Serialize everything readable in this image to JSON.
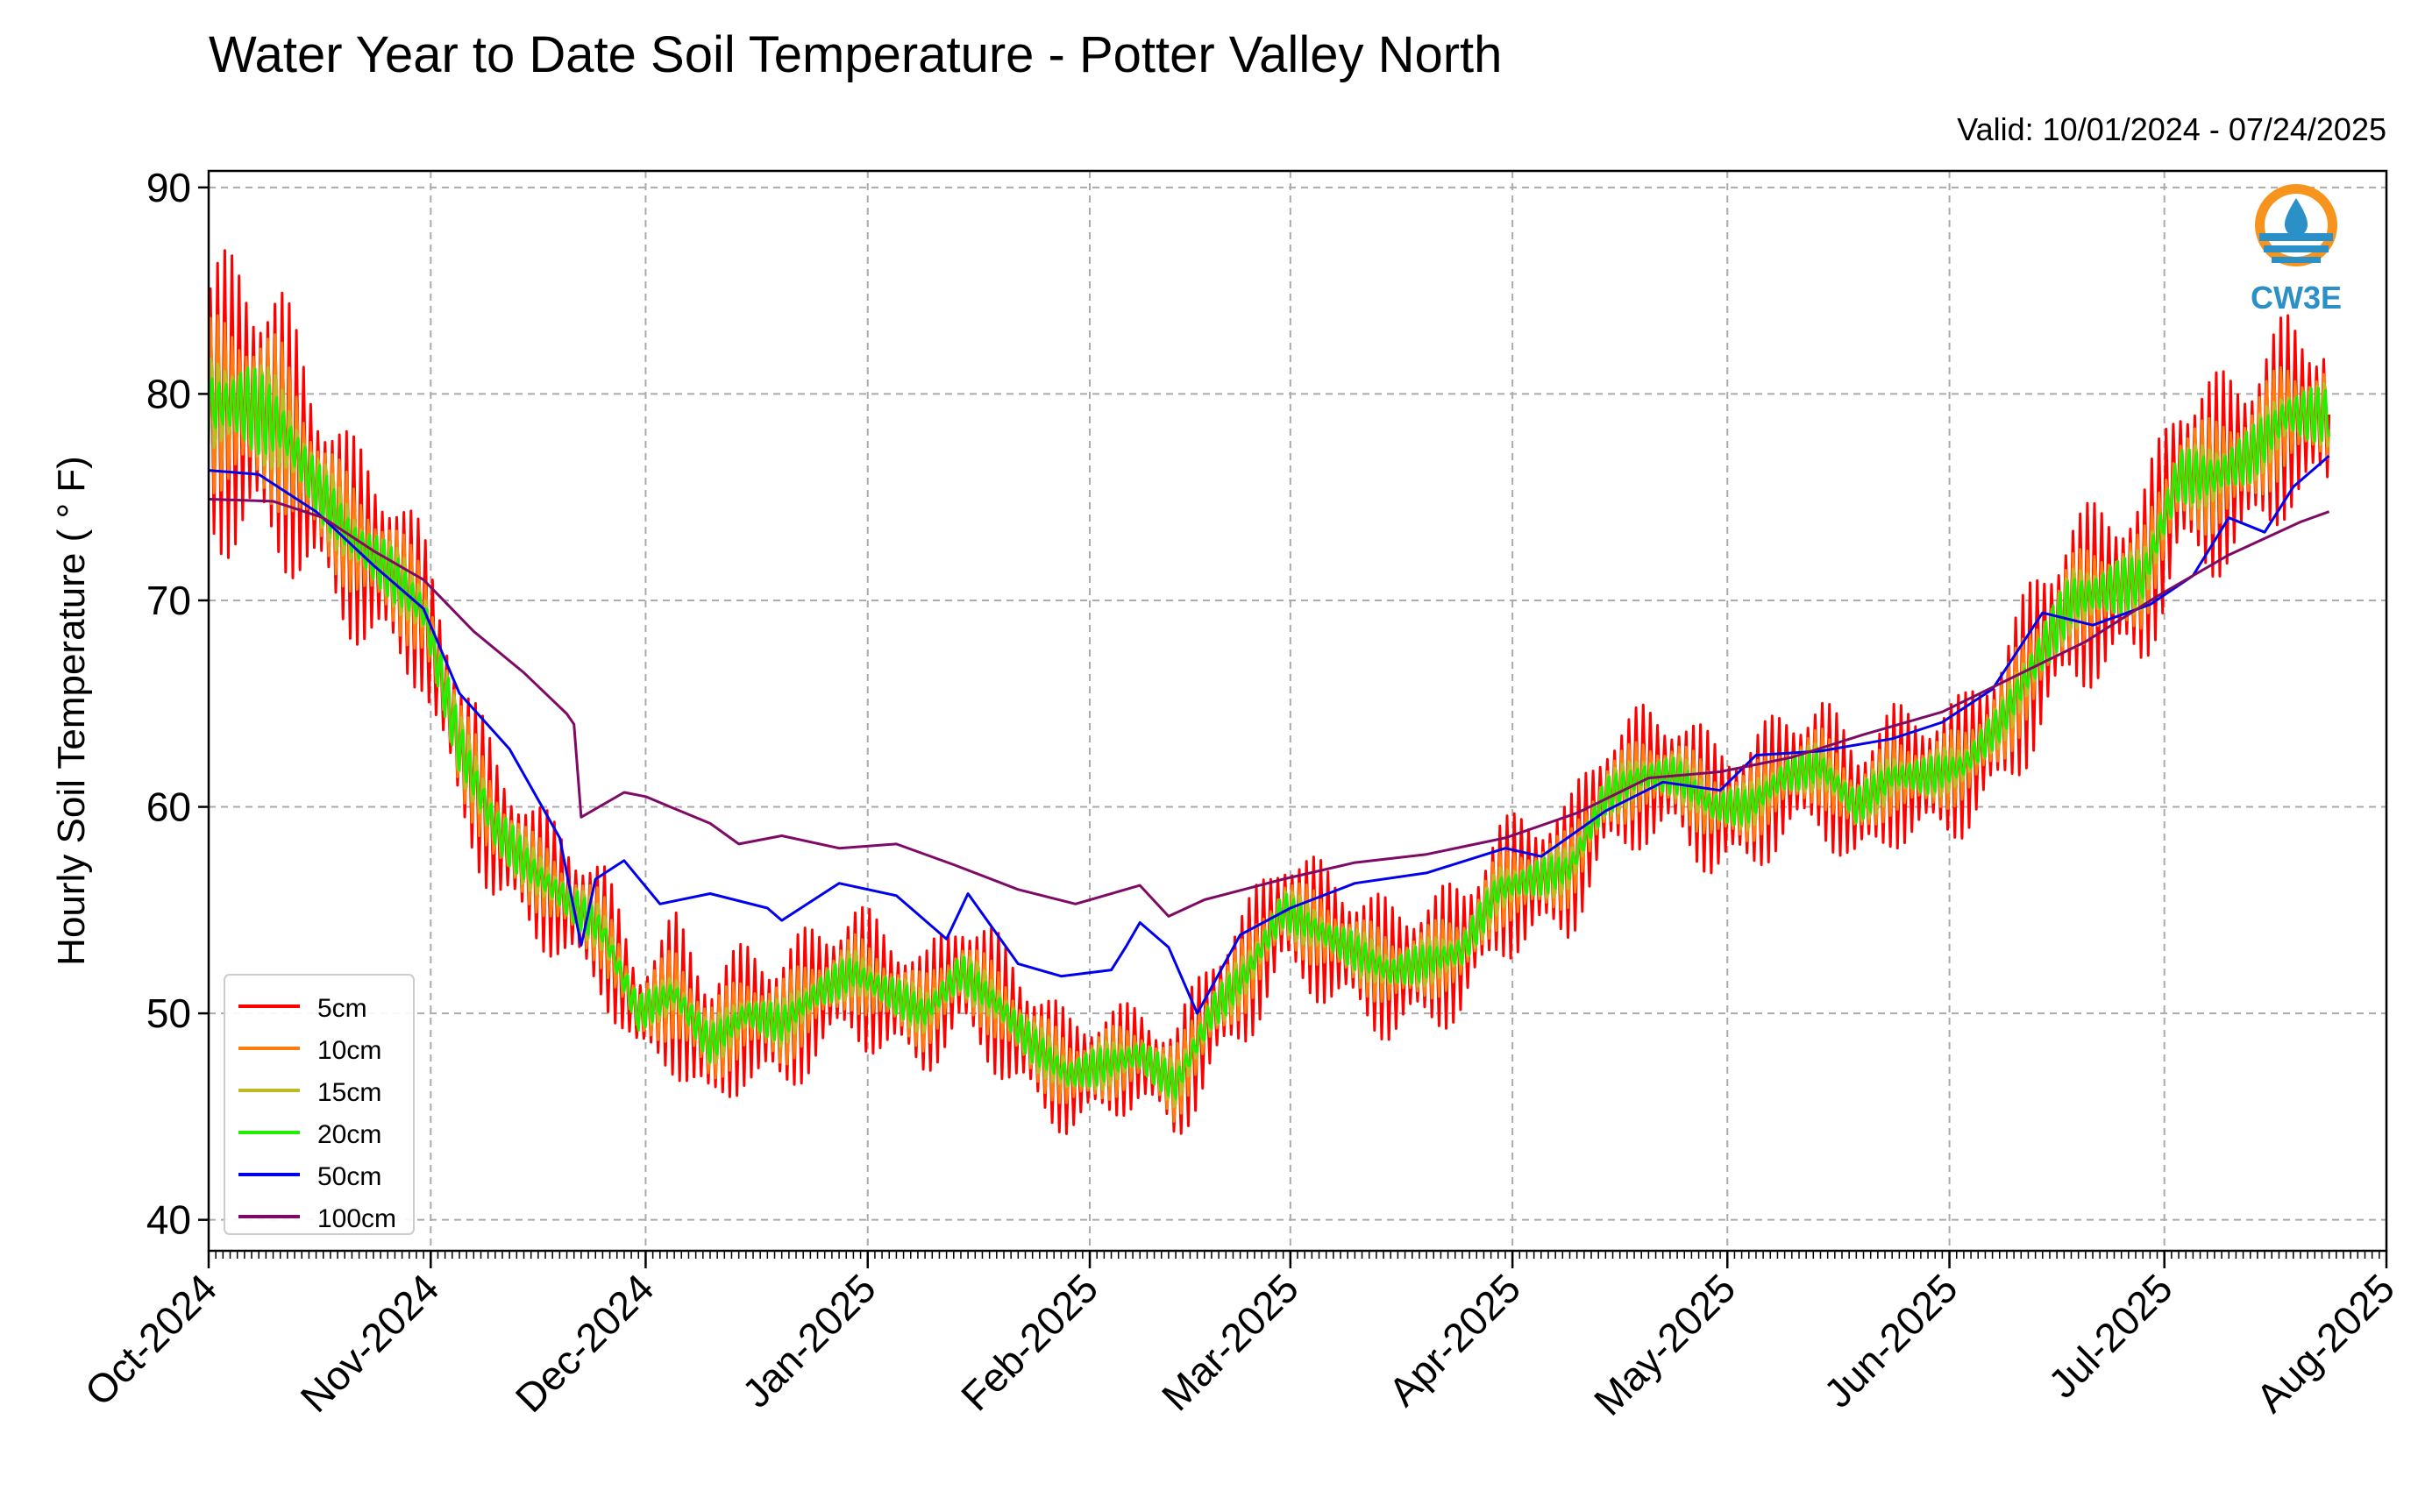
{
  "chart_data": {
    "type": "line",
    "title": "Water Year to Date Soil Temperature - Potter Valley North",
    "subtitle": "Valid: 10/01/2024 - 07/24/2025",
    "xlabel": "",
    "ylabel": "Hourly Soil Temperature ( ° F)",
    "logo_text": "CW3E",
    "xlim": [
      "2024-10-01",
      "2025-08-01"
    ],
    "ylim": [
      38.5,
      90.8
    ],
    "yticks": [
      40,
      50,
      60,
      70,
      80,
      90
    ],
    "xticks": [
      {
        "date": "2024-10-01",
        "label": "Oct-2024"
      },
      {
        "date": "2024-11-01",
        "label": "Nov-2024"
      },
      {
        "date": "2024-12-01",
        "label": "Dec-2024"
      },
      {
        "date": "2025-01-01",
        "label": "Jan-2025"
      },
      {
        "date": "2025-02-01",
        "label": "Feb-2025"
      },
      {
        "date": "2025-03-01",
        "label": "Mar-2025"
      },
      {
        "date": "2025-04-01",
        "label": "Apr-2025"
      },
      {
        "date": "2025-05-01",
        "label": "May-2025"
      },
      {
        "date": "2025-06-01",
        "label": "Jun-2025"
      },
      {
        "date": "2025-07-01",
        "label": "Jul-2025"
      },
      {
        "date": "2025-08-01",
        "label": "Aug-2025"
      }
    ],
    "grid": true,
    "legend_position": "bottom-left",
    "series": [
      {
        "name": "5cm",
        "color": "#ff0000",
        "width": 3,
        "x": [
          "2024-10-01",
          "2024-10-06",
          "2024-10-11",
          "2024-10-16",
          "2024-10-21",
          "2024-10-26",
          "2024-10-31",
          "2024-11-05",
          "2024-11-10",
          "2024-11-15",
          "2024-11-20",
          "2024-11-25",
          "2024-11-30",
          "2024-12-05",
          "2024-12-10",
          "2024-12-15",
          "2024-12-20",
          "2024-12-25",
          "2024-12-30",
          "2025-01-04",
          "2025-01-09",
          "2025-01-14",
          "2025-01-19",
          "2025-01-24",
          "2025-01-29",
          "2025-02-03",
          "2025-02-08",
          "2025-02-13",
          "2025-02-18",
          "2025-02-23",
          "2025-02-28",
          "2025-03-05",
          "2025-03-10",
          "2025-03-15",
          "2025-03-20",
          "2025-03-25",
          "2025-03-30",
          "2025-04-04",
          "2025-04-09",
          "2025-04-14",
          "2025-04-19",
          "2025-04-24",
          "2025-04-29",
          "2025-05-04",
          "2025-05-09",
          "2025-05-14",
          "2025-05-19",
          "2025-05-24",
          "2025-05-29",
          "2025-06-03",
          "2025-06-08",
          "2025-06-13",
          "2025-06-18",
          "2025-06-23",
          "2025-06-28",
          "2025-07-03",
          "2025-07-08",
          "2025-07-13",
          "2025-07-18",
          "2025-07-23"
        ],
        "mean": [
          79.5,
          79.5,
          78.5,
          75.5,
          73,
          71.5,
          69.5,
          63,
          59,
          57,
          55.5,
          54,
          50,
          51,
          48.5,
          50,
          49.5,
          51,
          52,
          51,
          50,
          52,
          50.5,
          48.5,
          47,
          47.5,
          48,
          46.5,
          50,
          52,
          55,
          54,
          53,
          52,
          52.5,
          53,
          56,
          56.5,
          57,
          60.5,
          61.5,
          61.5,
          60,
          60,
          61.5,
          62,
          60,
          61.5,
          61.5,
          62,
          64,
          67,
          70,
          70.5,
          71,
          76,
          76,
          77,
          79,
          79
        ],
        "amp": [
          7,
          8,
          7,
          5.5,
          5,
          5,
          4,
          4,
          4,
          3.5,
          3.5,
          3.5,
          2.5,
          4,
          4,
          3.5,
          4,
          3.5,
          3.5,
          3.5,
          3,
          3.5,
          3.5,
          3.5,
          3,
          3,
          2.5,
          3,
          3.5,
          3.5,
          3.5,
          3.5,
          3.5,
          3.5,
          3.5,
          3.5,
          3.5,
          3.5,
          3.5,
          3.5,
          3.5,
          3.5,
          3.5,
          3.5,
          3.5,
          3.5,
          3.5,
          3.5,
          3.5,
          3.5,
          4,
          4.5,
          4.5,
          4.5,
          4.5,
          5,
          5,
          5,
          5,
          4.5
        ]
      },
      {
        "name": "10cm",
        "color": "#ff7f0e",
        "width": 3,
        "x": [
          "2024-10-01",
          "2024-10-06",
          "2024-10-11",
          "2024-10-16",
          "2024-10-21",
          "2024-10-26",
          "2024-10-31",
          "2024-11-05",
          "2024-11-10",
          "2024-11-15",
          "2024-11-20",
          "2024-11-25",
          "2024-11-30",
          "2024-12-05",
          "2024-12-10",
          "2024-12-15",
          "2024-12-20",
          "2024-12-25",
          "2024-12-30",
          "2025-01-04",
          "2025-01-09",
          "2025-01-14",
          "2025-01-19",
          "2025-01-24",
          "2025-01-29",
          "2025-02-03",
          "2025-02-08",
          "2025-02-13",
          "2025-02-18",
          "2025-02-23",
          "2025-02-28",
          "2025-03-05",
          "2025-03-10",
          "2025-03-15",
          "2025-03-20",
          "2025-03-25",
          "2025-03-30",
          "2025-04-04",
          "2025-04-09",
          "2025-04-14",
          "2025-04-19",
          "2025-04-24",
          "2025-04-29",
          "2025-05-04",
          "2025-05-09",
          "2025-05-14",
          "2025-05-19",
          "2025-05-24",
          "2025-05-29",
          "2025-06-03",
          "2025-06-08",
          "2025-06-13",
          "2025-06-18",
          "2025-06-23",
          "2025-06-28",
          "2025-07-03",
          "2025-07-08",
          "2025-07-13",
          "2025-07-18",
          "2025-07-23"
        ],
        "mean": [
          79.5,
          79.5,
          78.5,
          75.5,
          73,
          71.5,
          69.5,
          63,
          59,
          57,
          55.5,
          54,
          50,
          51,
          48.5,
          50,
          49.5,
          51,
          52,
          51,
          50,
          52,
          50.5,
          48.5,
          47,
          47.5,
          48,
          46.5,
          50,
          52,
          55,
          54,
          53,
          52,
          52.5,
          53,
          56,
          56.5,
          57,
          60.5,
          61.5,
          61.5,
          60,
          60,
          61.5,
          62,
          60,
          61.5,
          61.5,
          62,
          64,
          67,
          70,
          70.5,
          71,
          76,
          76,
          77,
          79,
          79
        ],
        "amp": [
          4.5,
          5,
          4.5,
          3.5,
          3,
          3,
          2.5,
          2.5,
          2.5,
          2,
          2,
          2,
          1.5,
          2.5,
          2.5,
          2,
          2.5,
          2,
          2,
          2,
          2,
          2,
          2,
          2,
          2,
          2,
          1.5,
          2,
          2,
          2,
          2,
          2,
          2,
          2,
          2,
          2,
          2,
          2,
          2,
          2,
          2,
          2,
          2,
          2,
          2,
          2,
          2,
          2,
          2,
          2,
          2.5,
          2.5,
          2.5,
          2.5,
          2.5,
          3,
          3,
          3,
          3,
          2.5
        ]
      },
      {
        "name": "15cm",
        "color": "#bcbd22",
        "width": 3,
        "x": [
          "2024-10-01",
          "2024-10-06",
          "2024-10-11",
          "2024-10-16",
          "2024-10-21",
          "2024-10-26",
          "2024-10-31",
          "2024-11-05",
          "2024-11-10",
          "2024-11-15",
          "2024-11-20",
          "2024-11-25",
          "2024-11-30",
          "2024-12-05",
          "2024-12-10",
          "2024-12-15",
          "2024-12-20",
          "2024-12-25",
          "2024-12-30",
          "2025-01-04",
          "2025-01-09",
          "2025-01-14",
          "2025-01-19",
          "2025-01-24",
          "2025-01-29",
          "2025-02-03",
          "2025-02-08",
          "2025-02-13",
          "2025-02-18",
          "2025-02-23",
          "2025-02-28",
          "2025-03-05",
          "2025-03-10",
          "2025-03-15",
          "2025-03-20",
          "2025-03-25",
          "2025-03-30",
          "2025-04-04",
          "2025-04-09",
          "2025-04-14",
          "2025-04-19",
          "2025-04-24",
          "2025-04-29",
          "2025-05-04",
          "2025-05-09",
          "2025-05-14",
          "2025-05-19",
          "2025-05-24",
          "2025-05-29",
          "2025-06-03",
          "2025-06-08",
          "2025-06-13",
          "2025-06-18",
          "2025-06-23",
          "2025-06-28",
          "2025-07-03",
          "2025-07-08",
          "2025-07-13",
          "2025-07-18",
          "2025-07-23"
        ],
        "mean": [
          79.5,
          79.5,
          78.5,
          75.5,
          73,
          71.5,
          69.5,
          63,
          59,
          57,
          55.5,
          54,
          50,
          51,
          48.5,
          50,
          49.5,
          51,
          52,
          51,
          50,
          52,
          50.5,
          48.5,
          47,
          47.5,
          48,
          46.5,
          50,
          52,
          55,
          54,
          53,
          52,
          52.5,
          53,
          56,
          56.5,
          57,
          60.5,
          61.5,
          61.5,
          60,
          60,
          61.5,
          62,
          60,
          61.5,
          61.5,
          62,
          64,
          67,
          70,
          70.5,
          71,
          76,
          76,
          77,
          79,
          79
        ],
        "amp": [
          3,
          3.5,
          3,
          2.5,
          2,
          2,
          2,
          2,
          2,
          1.5,
          1.5,
          1.5,
          1,
          1.5,
          1.5,
          1.5,
          1.5,
          1.5,
          1.5,
          1.5,
          1.5,
          1.5,
          1.5,
          1.5,
          1.5,
          1.5,
          1,
          1.5,
          1.5,
          1.5,
          1.5,
          1.5,
          1.5,
          1.5,
          1.5,
          1.5,
          1.5,
          1.5,
          1.5,
          1.5,
          1.5,
          1.5,
          1.5,
          1.5,
          1.5,
          1.5,
          1.5,
          1.5,
          1.5,
          1.5,
          1.5,
          2,
          2,
          2,
          2,
          2,
          2,
          2,
          2,
          2
        ]
      },
      {
        "name": "20cm",
        "color": "#22ee00",
        "width": 3,
        "x": [
          "2024-10-01",
          "2024-10-06",
          "2024-10-11",
          "2024-10-16",
          "2024-10-21",
          "2024-10-26",
          "2024-10-31",
          "2024-11-05",
          "2024-11-10",
          "2024-11-15",
          "2024-11-20",
          "2024-11-25",
          "2024-11-30",
          "2024-12-05",
          "2024-12-10",
          "2024-12-15",
          "2024-12-20",
          "2024-12-25",
          "2024-12-30",
          "2025-01-04",
          "2025-01-09",
          "2025-01-14",
          "2025-01-19",
          "2025-01-24",
          "2025-01-29",
          "2025-02-03",
          "2025-02-08",
          "2025-02-13",
          "2025-02-18",
          "2025-02-23",
          "2025-02-28",
          "2025-03-05",
          "2025-03-10",
          "2025-03-15",
          "2025-03-20",
          "2025-03-25",
          "2025-03-30",
          "2025-04-04",
          "2025-04-09",
          "2025-04-14",
          "2025-04-19",
          "2025-04-24",
          "2025-04-29",
          "2025-05-04",
          "2025-05-09",
          "2025-05-14",
          "2025-05-19",
          "2025-05-24",
          "2025-05-29",
          "2025-06-03",
          "2025-06-08",
          "2025-06-13",
          "2025-06-18",
          "2025-06-23",
          "2025-06-28",
          "2025-07-03",
          "2025-07-08",
          "2025-07-13",
          "2025-07-18",
          "2025-07-23"
        ],
        "mean": [
          79.5,
          79.5,
          78.5,
          75.5,
          73,
          71.5,
          69.5,
          63,
          59,
          57,
          55.5,
          54,
          50,
          51,
          48.5,
          50,
          49.5,
          51,
          52,
          51,
          50,
          52,
          50.5,
          48.5,
          47,
          47.5,
          48,
          46.5,
          50,
          52,
          55,
          54,
          53,
          52,
          52.5,
          53,
          56,
          56.5,
          57,
          60.5,
          61.5,
          61.5,
          60,
          60,
          61.5,
          62,
          60,
          61.5,
          61.5,
          62,
          64,
          67,
          70,
          70.5,
          71,
          76,
          76,
          77,
          79,
          79
        ],
        "amp": [
          2,
          2.5,
          2,
          1.5,
          1.5,
          1.5,
          1.5,
          1.5,
          1.5,
          1,
          1,
          1,
          1,
          1,
          1,
          1,
          1,
          1,
          1,
          1,
          1,
          1,
          1,
          1,
          1,
          1,
          1,
          1,
          1,
          1,
          1,
          1,
          1,
          1,
          1,
          1,
          1,
          1,
          1,
          1,
          1,
          1,
          1,
          1,
          1,
          1,
          1,
          1,
          1,
          1,
          1,
          1.5,
          1.5,
          1.5,
          1.5,
          1.5,
          1.5,
          1.5,
          1.5,
          1.5
        ]
      },
      {
        "name": "50cm",
        "color": "#0000ee",
        "width": 3,
        "x": [
          "2024-10-01",
          "2024-10-08",
          "2024-10-16",
          "2024-10-24",
          "2024-10-31",
          "2024-11-05",
          "2024-11-12",
          "2024-11-19",
          "2024-11-22",
          "2024-11-24",
          "2024-11-28",
          "2024-12-03",
          "2024-12-10",
          "2024-12-18",
          "2024-12-20",
          "2024-12-28",
          "2025-01-05",
          "2025-01-12",
          "2025-01-15",
          "2025-01-22",
          "2025-01-28",
          "2025-02-04",
          "2025-02-06",
          "2025-02-08",
          "2025-02-12",
          "2025-02-16",
          "2025-02-22",
          "2025-03-01",
          "2025-03-10",
          "2025-03-20",
          "2025-03-31",
          "2025-04-05",
          "2025-04-14",
          "2025-04-22",
          "2025-04-30",
          "2025-05-05",
          "2025-05-14",
          "2025-05-24",
          "2025-05-31",
          "2025-06-07",
          "2025-06-14",
          "2025-06-21",
          "2025-06-29",
          "2025-07-05",
          "2025-07-10",
          "2025-07-15",
          "2025-07-19",
          "2025-07-24"
        ],
        "y": [
          76.3,
          76.1,
          74.3,
          71.7,
          69.6,
          65.5,
          62.8,
          58.5,
          53.3,
          56.5,
          57.4,
          55.3,
          55.8,
          55.1,
          54.5,
          56.3,
          55.7,
          53.6,
          55.8,
          52.4,
          51.8,
          52.1,
          53.2,
          54.4,
          53.2,
          50,
          53.8,
          55.1,
          56.3,
          56.8,
          58,
          57.6,
          59.8,
          61.2,
          60.8,
          62.5,
          62.7,
          63.3,
          64.1,
          65.7,
          69.4,
          68.8,
          69.8,
          71.2,
          74,
          73.3,
          75.5,
          77
        ]
      },
      {
        "name": "100cm",
        "color": "#7f0a66",
        "width": 3,
        "x": [
          "2024-10-01",
          "2024-10-10",
          "2024-10-17",
          "2024-10-24",
          "2024-10-31",
          "2024-11-07",
          "2024-11-14",
          "2024-11-20",
          "2024-11-21",
          "2024-11-22",
          "2024-11-28",
          "2024-12-01",
          "2024-12-10",
          "2024-12-14",
          "2024-12-20",
          "2024-12-28",
          "2025-01-05",
          "2025-01-13",
          "2025-01-22",
          "2025-01-30",
          "2025-02-08",
          "2025-02-12",
          "2025-02-17",
          "2025-02-28",
          "2025-03-10",
          "2025-03-20",
          "2025-03-31",
          "2025-04-10",
          "2025-04-20",
          "2025-04-30",
          "2025-05-10",
          "2025-05-20",
          "2025-05-31",
          "2025-06-10",
          "2025-06-20",
          "2025-06-30",
          "2025-07-10",
          "2025-07-20",
          "2025-07-24"
        ],
        "y": [
          74.9,
          74.8,
          74,
          72.4,
          71,
          68.5,
          66.5,
          64.5,
          64,
          59.5,
          60.7,
          60.5,
          59.2,
          58.2,
          58.6,
          58,
          58.2,
          57.2,
          56,
          55.3,
          56.2,
          54.7,
          55.5,
          56.5,
          57.3,
          57.7,
          58.5,
          59.7,
          61.4,
          61.7,
          62.4,
          63.5,
          64.6,
          66.3,
          68,
          70.2,
          72.2,
          73.8,
          74.3
        ]
      }
    ]
  }
}
